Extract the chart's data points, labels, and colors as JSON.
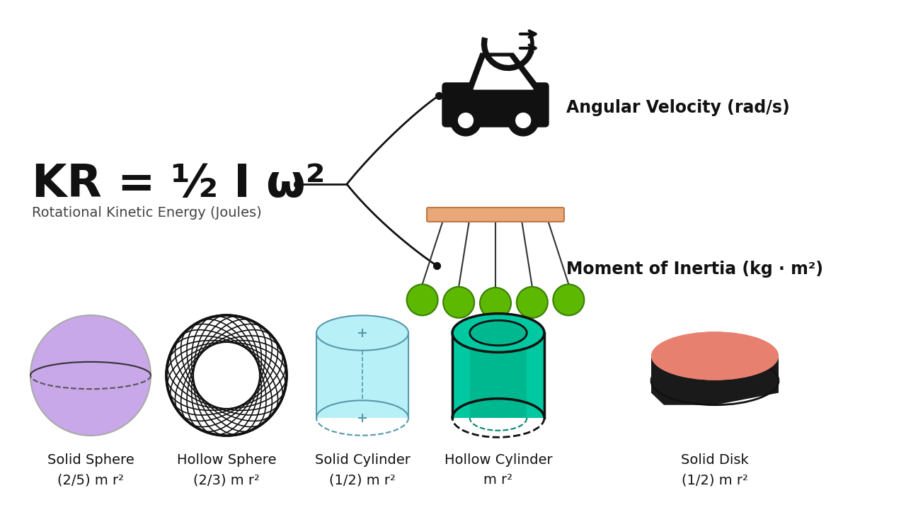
{
  "bg_color": "#ffffff",
  "formula_sub": "Rotational Kinetic Energy (Joules)",
  "angular_velocity_label": "Angular Velocity (rad/s)",
  "moment_inertia_label": "Moment of Inertia (kg · m²)",
  "objects": [
    {
      "name": "Solid Sphere",
      "formula": "(2/5) m r²",
      "color": "#c8a8e8"
    },
    {
      "name": "Hollow Sphere",
      "formula": "(2/3) m r²",
      "color": "#111111"
    },
    {
      "name": "Solid Cylinder",
      "formula": "(1/2) m r²",
      "color": "#b8f0f8"
    },
    {
      "name": "Hollow Cylinder",
      "formula": "m r²",
      "color": "#00c8a0"
    },
    {
      "name": "Solid Disk",
      "formula": "(1/2) m r²",
      "color": "#e88070"
    }
  ],
  "line_color": "#111111",
  "pendulum_bar_color": "#e8a878",
  "pendulum_ball_color": "#5cb800"
}
